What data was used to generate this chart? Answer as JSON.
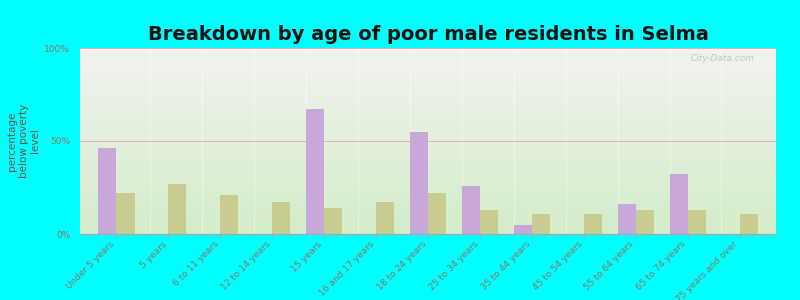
{
  "title": "Breakdown by age of poor male residents in Selma",
  "ylabel": "percentage\nbelow poverty\nlevel",
  "categories": [
    "Under 5 years",
    "5 years",
    "6 to 11 years",
    "12 to 14 years",
    "15 years",
    "16 and 17 years",
    "18 to 24 years",
    "25 to 34 years",
    "35 to 44 years",
    "45 to 54 years",
    "55 to 64 years",
    "65 to 74 years",
    "75 years and over"
  ],
  "selma_values": [
    46,
    0,
    0,
    0,
    67,
    0,
    55,
    26,
    5,
    0,
    16,
    32,
    0
  ],
  "indiana_values": [
    22,
    27,
    21,
    17,
    14,
    17,
    22,
    13,
    11,
    11,
    13,
    13,
    11
  ],
  "selma_color": "#c8a8d8",
  "indiana_color": "#c8cc90",
  "background_color": "#00ffff",
  "plot_bg_top": "#f2f2ee",
  "plot_bg_bottom": "#d4edca",
  "ylim": [
    0,
    100
  ],
  "yticks": [
    0,
    50,
    100
  ],
  "ytick_labels": [
    "0%",
    "50%",
    "100%"
  ],
  "title_fontsize": 14,
  "ylabel_fontsize": 7.5,
  "tick_label_fontsize": 6.5,
  "legend_fontsize": 9,
  "bar_width": 0.35,
  "watermark": "City-Data.com",
  "tick_color": "#887766",
  "ylabel_color": "#665544"
}
